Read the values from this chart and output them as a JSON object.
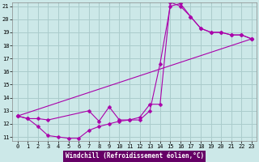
{
  "xlabel": "Windchill (Refroidissement éolien,°C)",
  "bg_color": "#cce8e8",
  "grid_color": "#aacccc",
  "line_color": "#aa00aa",
  "xlim": [
    -0.5,
    23.5
  ],
  "ylim": [
    10.7,
    21.3
  ],
  "xticks": [
    0,
    1,
    2,
    3,
    4,
    5,
    6,
    7,
    8,
    9,
    10,
    11,
    12,
    13,
    14,
    15,
    16,
    17,
    18,
    19,
    20,
    21,
    22,
    23
  ],
  "yticks": [
    11,
    12,
    13,
    14,
    15,
    16,
    17,
    18,
    19,
    20,
    21
  ],
  "line1_x": [
    0,
    1,
    2,
    3,
    7,
    8,
    9,
    10,
    11,
    12,
    13,
    14,
    15,
    16,
    17,
    18,
    19,
    20,
    21,
    22,
    23
  ],
  "line1_y": [
    12.6,
    12.4,
    12.4,
    12.3,
    13.0,
    12.2,
    13.3,
    12.3,
    12.3,
    12.3,
    13.0,
    16.6,
    21.0,
    21.2,
    20.2,
    19.3,
    19.0,
    19.0,
    18.8,
    18.8,
    18.5
  ],
  "line2_x": [
    0,
    1,
    2,
    3,
    4,
    5,
    6,
    7,
    8,
    9,
    10,
    11,
    12,
    13,
    14,
    15,
    16,
    17,
    18,
    19,
    20,
    21,
    22,
    23
  ],
  "line2_y": [
    12.6,
    12.4,
    11.8,
    11.1,
    11.0,
    10.9,
    10.9,
    11.5,
    11.8,
    12.0,
    12.2,
    12.3,
    12.5,
    13.5,
    13.5,
    21.3,
    21.0,
    20.2,
    19.3,
    19.0,
    19.0,
    18.8,
    18.8,
    18.5
  ],
  "line3_x": [
    0,
    23
  ],
  "line3_y": [
    12.6,
    18.5
  ],
  "xlabel_bg": "#660066",
  "xlabel_fg": "#ffffff",
  "tick_fontsize": 5,
  "xlabel_fontsize": 5.5
}
